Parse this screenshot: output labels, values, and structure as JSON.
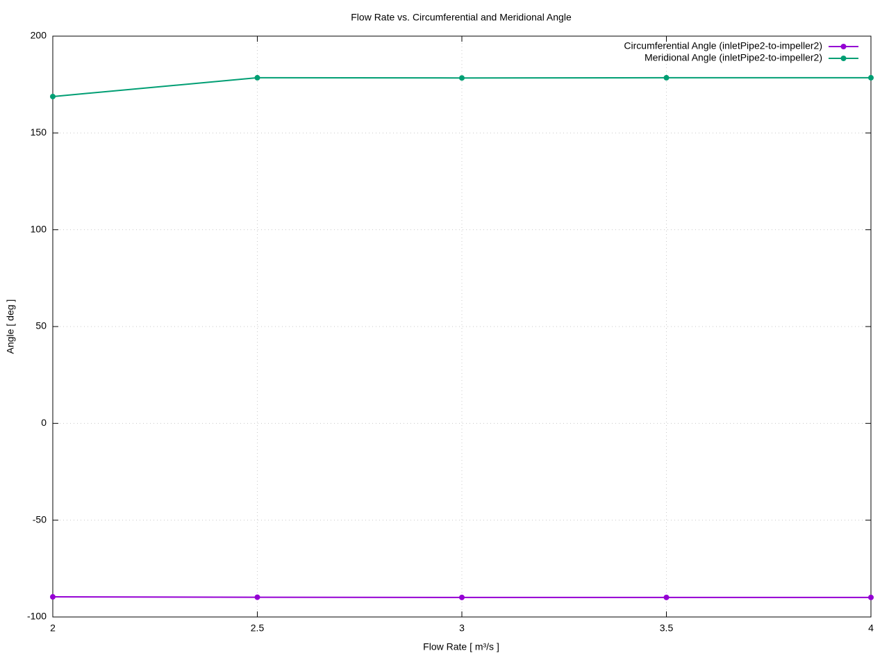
{
  "chart_data": {
    "type": "line",
    "title": "Flow Rate vs. Circumferential and Meridional Angle",
    "xlabel": "Flow Rate [ m³/s ]",
    "ylabel": "Angle [ deg ]",
    "x": [
      2,
      2.5,
      3,
      3.5,
      4
    ],
    "series": [
      {
        "name": "Circumferential Angle (inletPipe2-to-impeller2)",
        "color": "#9400d3",
        "values": [
          -89.6,
          -89.8,
          -89.9,
          -89.9,
          -89.9
        ]
      },
      {
        "name": "Meridional Angle (inletPipe2-to-impeller2)",
        "color": "#009e73",
        "values": [
          168.8,
          178.5,
          178.4,
          178.5,
          178.5
        ]
      }
    ],
    "xlim": [
      2,
      4
    ],
    "xticks": [
      2,
      2.5,
      3,
      3.5,
      4
    ],
    "ylim": [
      -100,
      200
    ],
    "yticks": [
      -100,
      -50,
      0,
      50,
      100,
      150,
      200
    ],
    "grid": true,
    "legend": "top-right"
  }
}
